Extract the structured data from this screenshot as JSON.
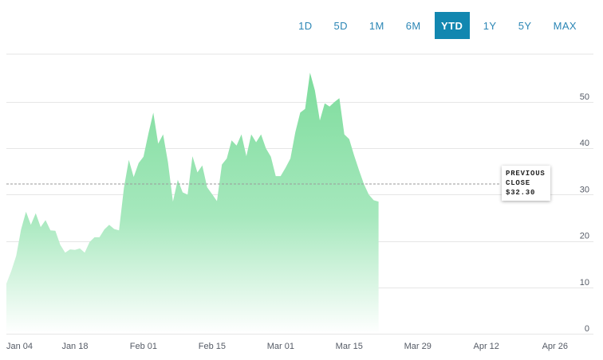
{
  "range_buttons": [
    "1D",
    "5D",
    "1M",
    "6M",
    "YTD",
    "1Y",
    "5Y",
    "MAX"
  ],
  "active_range": "YTD",
  "colors": {
    "accent": "#1287b0",
    "area_top": "#7ddc9c",
    "area_bottom": "#ffffff",
    "grid": "#e6e6e6",
    "reference_line": "#9a9a9a"
  },
  "callout": {
    "line1": "PREVIOUS",
    "line2": "CLOSE",
    "value": "$32.30"
  },
  "chart_data": {
    "type": "area",
    "title": "",
    "xlabel": "",
    "ylabel": "",
    "ylim": [
      0,
      60
    ],
    "y_axis_side": "right",
    "y_ticks": [
      0,
      10,
      20,
      30,
      40,
      50
    ],
    "x_tick_labels": [
      "Jan 04",
      "Jan 18",
      "Feb 01",
      "Feb 15",
      "Mar 01",
      "Mar 15",
      "Mar 29",
      "Apr 12",
      "Apr 26"
    ],
    "x_tick_dates": [
      "2021-01-04",
      "2021-01-18",
      "2021-02-01",
      "2021-02-15",
      "2021-03-01",
      "2021-03-15",
      "2021-03-29",
      "2021-04-12",
      "2021-04-26"
    ],
    "x_range": [
      "2021-01-04",
      "2021-04-26"
    ],
    "grid": true,
    "previous_close": 32.3,
    "series": [
      {
        "points": [
          [
            "2021-01-04",
            10.8
          ],
          [
            "2021-01-05",
            13.5
          ],
          [
            "2021-01-06",
            16.8
          ],
          [
            "2021-01-07",
            22.5
          ],
          [
            "2021-01-08",
            26.3
          ],
          [
            "2021-01-09",
            23.5
          ],
          [
            "2021-01-10",
            26.0
          ],
          [
            "2021-01-11",
            23.0
          ],
          [
            "2021-01-12",
            24.5
          ],
          [
            "2021-01-13",
            22.3
          ],
          [
            "2021-01-14",
            22.2
          ],
          [
            "2021-01-15",
            19.2
          ],
          [
            "2021-01-16",
            17.5
          ],
          [
            "2021-01-17",
            18.2
          ],
          [
            "2021-01-18",
            18.1
          ],
          [
            "2021-01-19",
            18.4
          ],
          [
            "2021-01-20",
            17.5
          ],
          [
            "2021-01-21",
            19.8
          ],
          [
            "2021-01-22",
            20.8
          ],
          [
            "2021-01-23",
            20.8
          ],
          [
            "2021-01-24",
            22.5
          ],
          [
            "2021-01-25",
            23.5
          ],
          [
            "2021-01-26",
            22.6
          ],
          [
            "2021-01-27",
            22.3
          ],
          [
            "2021-01-28",
            31.5
          ],
          [
            "2021-01-29",
            37.5
          ],
          [
            "2021-01-30",
            33.8
          ],
          [
            "2021-01-31",
            36.8
          ],
          [
            "2021-02-01",
            38.2
          ],
          [
            "2021-02-02",
            43.2
          ],
          [
            "2021-02-03",
            47.7
          ],
          [
            "2021-02-04",
            41.0
          ],
          [
            "2021-02-05",
            43.0
          ],
          [
            "2021-02-06",
            37.0
          ],
          [
            "2021-02-07",
            28.5
          ],
          [
            "2021-02-08",
            33.2
          ],
          [
            "2021-02-09",
            30.5
          ],
          [
            "2021-02-10",
            30.0
          ],
          [
            "2021-02-11",
            38.3
          ],
          [
            "2021-02-12",
            34.8
          ],
          [
            "2021-02-13",
            36.3
          ],
          [
            "2021-02-14",
            31.6
          ],
          [
            "2021-02-15",
            30.1
          ],
          [
            "2021-02-16",
            28.6
          ],
          [
            "2021-02-17",
            36.5
          ],
          [
            "2021-02-18",
            37.8
          ],
          [
            "2021-02-19",
            41.7
          ],
          [
            "2021-02-20",
            40.6
          ],
          [
            "2021-02-21",
            43.0
          ],
          [
            "2021-02-22",
            38.3
          ],
          [
            "2021-02-23",
            43.0
          ],
          [
            "2021-02-24",
            41.3
          ],
          [
            "2021-02-25",
            43.0
          ],
          [
            "2021-02-26",
            40.0
          ],
          [
            "2021-02-27",
            38.2
          ],
          [
            "2021-02-28",
            34.0
          ],
          [
            "2021-03-01",
            34.0
          ],
          [
            "2021-03-02",
            35.8
          ],
          [
            "2021-03-03",
            37.8
          ],
          [
            "2021-03-04",
            43.5
          ],
          [
            "2021-03-05",
            47.7
          ],
          [
            "2021-03-06",
            48.5
          ],
          [
            "2021-03-07",
            56.3
          ],
          [
            "2021-03-08",
            52.5
          ],
          [
            "2021-03-09",
            46.0
          ],
          [
            "2021-03-10",
            49.7
          ],
          [
            "2021-03-11",
            49.0
          ],
          [
            "2021-03-12",
            50.0
          ],
          [
            "2021-03-13",
            50.8
          ],
          [
            "2021-03-14",
            43.0
          ],
          [
            "2021-03-15",
            42.0
          ],
          [
            "2021-03-16",
            38.5
          ],
          [
            "2021-03-17",
            35.3
          ],
          [
            "2021-03-18",
            32.3
          ],
          [
            "2021-03-19",
            30.0
          ],
          [
            "2021-03-20",
            28.8
          ],
          [
            "2021-03-21",
            28.5
          ]
        ]
      }
    ]
  }
}
